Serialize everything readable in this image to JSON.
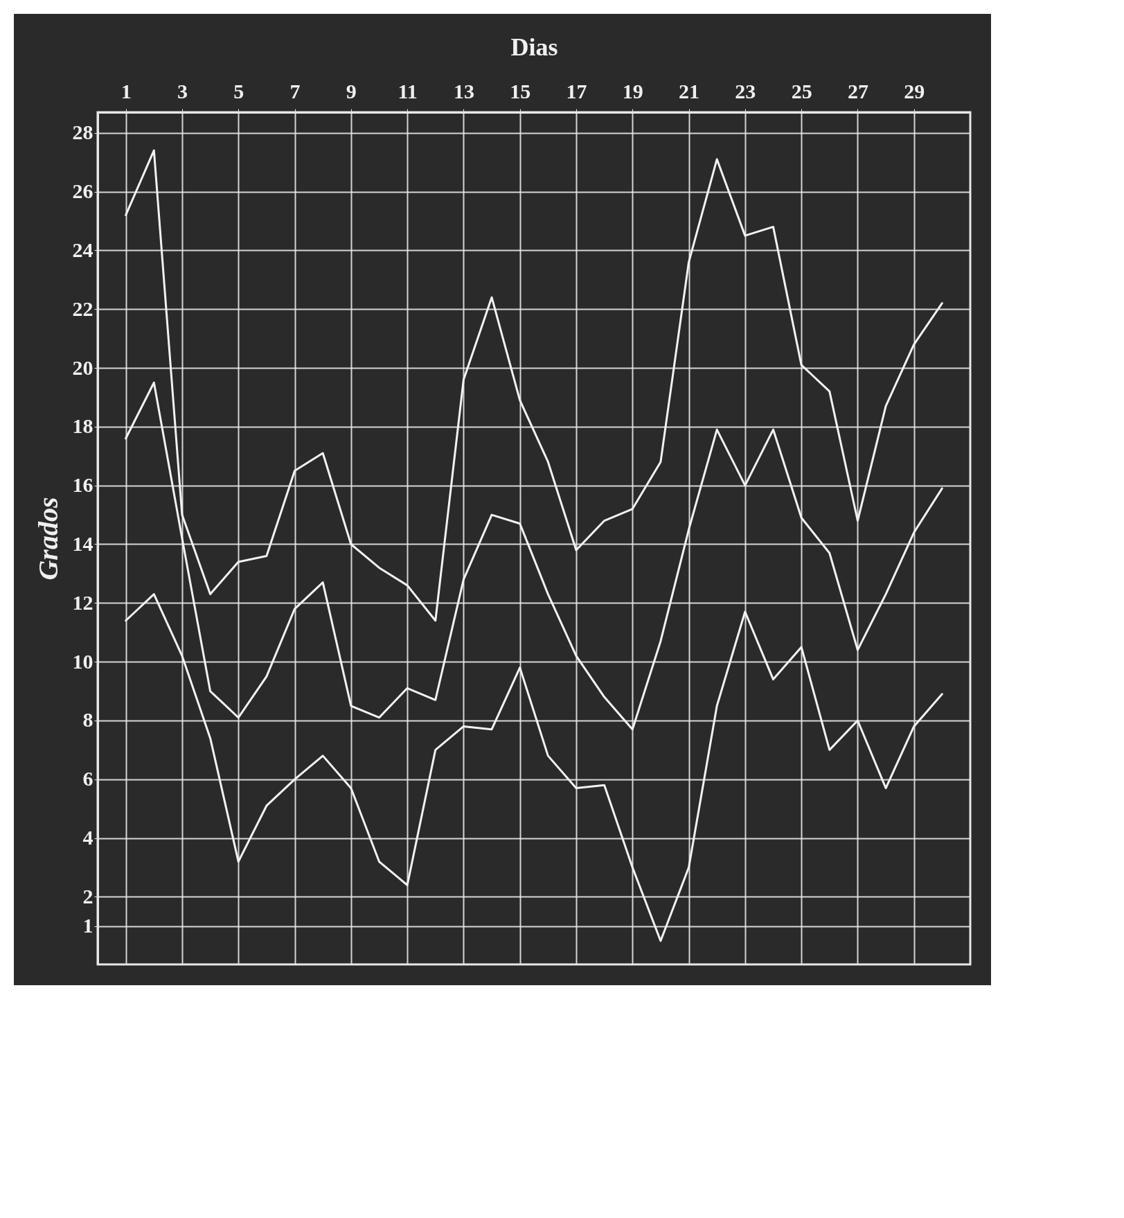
{
  "chart_data": {
    "type": "line",
    "xlabel": "Dias",
    "ylabel": "Grados",
    "x": [
      1,
      2,
      3,
      4,
      5,
      6,
      7,
      8,
      9,
      10,
      11,
      12,
      13,
      14,
      15,
      16,
      17,
      18,
      19,
      20,
      21,
      22,
      23,
      24,
      25,
      26,
      27,
      28,
      29,
      30
    ],
    "series": [
      {
        "color": "#f2f2f2",
        "values": [
          25.2,
          27.4,
          15.0,
          12.3,
          13.4,
          13.6,
          16.5,
          17.1,
          14.0,
          13.2,
          12.6,
          11.4,
          19.6,
          22.4,
          18.9,
          16.8,
          13.8,
          14.8,
          15.2,
          16.8,
          23.6,
          27.1,
          24.5,
          24.8,
          20.1,
          19.2,
          14.8,
          18.7,
          20.8,
          22.2
        ]
      },
      {
        "color": "#f2f2f2",
        "values": [
          17.6,
          19.5,
          14.2,
          9.0,
          8.1,
          9.5,
          11.8,
          12.7,
          8.5,
          8.1,
          9.1,
          8.7,
          12.8,
          15.0,
          14.7,
          12.3,
          10.2,
          8.8,
          7.7,
          10.7,
          14.5,
          17.9,
          16.0,
          17.9,
          14.9,
          13.7,
          10.4,
          12.3,
          14.4,
          15.9
        ]
      },
      {
        "color": "#f2f2f2",
        "values": [
          11.4,
          12.3,
          10.2,
          7.4,
          3.2,
          5.1,
          6.0,
          6.8,
          5.7,
          3.2,
          2.4,
          7.0,
          7.8,
          7.7,
          9.8,
          6.8,
          5.7,
          5.8,
          3.0,
          0.5,
          3.0,
          8.5,
          11.7,
          9.4,
          10.5,
          7.0,
          8.0,
          5.7,
          7.8,
          8.9
        ]
      }
    ],
    "xlim": [
      0,
      31
    ],
    "ylim": [
      -0.3,
      28.7
    ],
    "xticks": [
      1,
      3,
      5,
      7,
      9,
      11,
      13,
      15,
      17,
      19,
      21,
      23,
      25,
      27,
      29
    ],
    "yticks": [
      1,
      2,
      4,
      6,
      8,
      10,
      12,
      14,
      16,
      18,
      20,
      22,
      24,
      26,
      28
    ],
    "grid": true
  }
}
